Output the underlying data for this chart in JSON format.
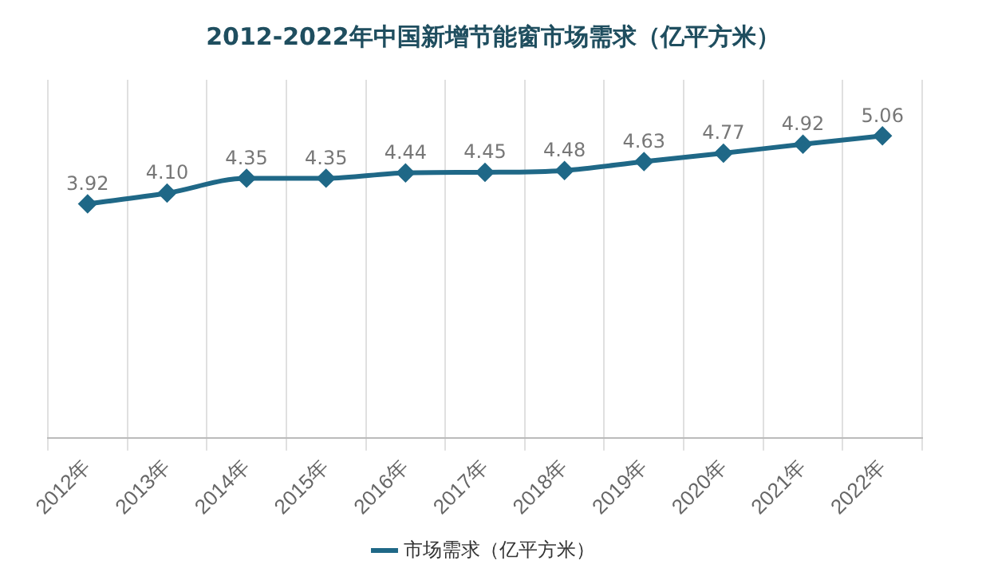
{
  "chart_data": {
    "type": "line",
    "title": "2012-2022年中国新增节能窗市场需求（亿平方米）",
    "categories": [
      "2012年",
      "2013年",
      "2014年",
      "2015年",
      "2016年",
      "2017年",
      "2018年",
      "2019年",
      "2020年",
      "2021年",
      "2022年"
    ],
    "series": [
      {
        "name": "市场需求（亿平方米）",
        "color": "#1f6887",
        "values": [
          3.92,
          4.1,
          4.35,
          4.35,
          4.44,
          4.45,
          4.48,
          4.63,
          4.77,
          4.92,
          5.06
        ],
        "value_labels": [
          "3.92",
          "4.10",
          "4.35",
          "4.35",
          "4.44",
          "4.45",
          "4.48",
          "4.63",
          "4.77",
          "4.92",
          "5.06"
        ]
      }
    ],
    "marker": "diamond",
    "grid": "x",
    "legend": "bottom",
    "tick_labels": "x"
  }
}
